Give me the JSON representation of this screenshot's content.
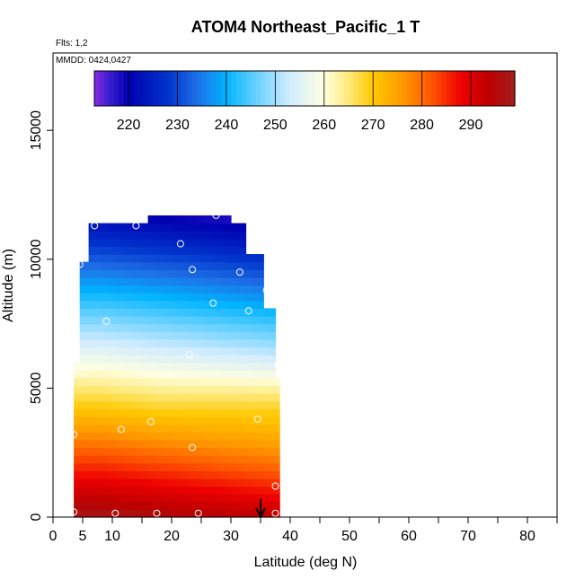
{
  "chart_data": {
    "type": "heatmap",
    "title": "ATOM4 Northeast_Pacific_1 T",
    "annotations": {
      "flights": "Flts: 1,2",
      "dates": "MMDD: 0424,0427"
    },
    "xlabel": "Latitude (deg N)",
    "ylabel": "Altitude (m)",
    "xlim": [
      0,
      85
    ],
    "ylim": [
      0,
      18000
    ],
    "x_ticks": [
      0,
      5,
      10,
      20,
      30,
      40,
      50,
      60,
      70,
      80
    ],
    "x_minor_ticks": [
      15,
      25,
      35,
      45,
      55,
      65,
      75,
      85
    ],
    "y_ticks": [
      0,
      5000,
      10000,
      15000
    ],
    "grid": false,
    "colorbar": {
      "placement": "top, inside plot",
      "range": [
        213,
        299
      ],
      "ticks": [
        220,
        230,
        240,
        250,
        260,
        270,
        280,
        290
      ],
      "color_stops": [
        {
          "v": 213,
          "c": "#8a2be2"
        },
        {
          "v": 216,
          "c": "#3a1fd0"
        },
        {
          "v": 220,
          "c": "#0000b0"
        },
        {
          "v": 228,
          "c": "#0033cc"
        },
        {
          "v": 234,
          "c": "#1f6fe5"
        },
        {
          "v": 240,
          "c": "#00b4ff"
        },
        {
          "v": 246,
          "c": "#66d0ff"
        },
        {
          "v": 253,
          "c": "#d2ecff"
        },
        {
          "v": 260,
          "c": "#ffffe0"
        },
        {
          "v": 265,
          "c": "#ffe97a"
        },
        {
          "v": 270,
          "c": "#ffc800"
        },
        {
          "v": 276,
          "c": "#ff9a00"
        },
        {
          "v": 282,
          "c": "#ff5500"
        },
        {
          "v": 288,
          "c": "#ee0000"
        },
        {
          "v": 294,
          "c": "#bb0000"
        },
        {
          "v": 299,
          "c": "#a02020"
        }
      ]
    },
    "profiles": [
      {
        "lat": 4,
        "alt_min": 0,
        "alt_max": 6000
      },
      {
        "lat": 5,
        "alt_min": 0,
        "alt_max": 9800
      },
      {
        "lat": 7,
        "alt_min": 0,
        "alt_max": 11300
      },
      {
        "lat": 14,
        "alt_min": 0,
        "alt_max": 11300
      },
      {
        "lat": 18,
        "alt_min": 0,
        "alt_max": 11800
      },
      {
        "lat": 21,
        "alt_min": 0,
        "alt_max": 11800
      },
      {
        "lat": 24,
        "alt_min": 0,
        "alt_max": 11800
      },
      {
        "lat": 29,
        "alt_min": 0,
        "alt_max": 11800
      },
      {
        "lat": 31,
        "alt_min": 0,
        "alt_max": 11300
      },
      {
        "lat": 34,
        "alt_min": 0,
        "alt_max": 10300
      },
      {
        "lat": 37,
        "alt_min": 0,
        "alt_max": 8000
      },
      {
        "lat": 38,
        "alt_min": 0,
        "alt_max": 5500
      }
    ],
    "points": [
      {
        "x": 3.5,
        "y": 200
      },
      {
        "x": 10.5,
        "y": 150
      },
      {
        "x": 17.5,
        "y": 150
      },
      {
        "x": 24.5,
        "y": 150
      },
      {
        "x": 37.5,
        "y": 150
      },
      {
        "x": 37.5,
        "y": 1200
      },
      {
        "x": 3.5,
        "y": 3200
      },
      {
        "x": 11.5,
        "y": 3400
      },
      {
        "x": 16.5,
        "y": 3700
      },
      {
        "x": 23.5,
        "y": 2700
      },
      {
        "x": 34.5,
        "y": 3800
      },
      {
        "x": 3.5,
        "y": 5700
      },
      {
        "x": 5.0,
        "y": 5600
      },
      {
        "x": 38.0,
        "y": 5900
      },
      {
        "x": 23.0,
        "y": 6300
      },
      {
        "x": 9.0,
        "y": 7600
      },
      {
        "x": 27.0,
        "y": 8300
      },
      {
        "x": 33.0,
        "y": 8000
      },
      {
        "x": 36.0,
        "y": 8800
      },
      {
        "x": 23.5,
        "y": 9600
      },
      {
        "x": 31.5,
        "y": 9500
      },
      {
        "x": 4.5,
        "y": 9800
      },
      {
        "x": 21.5,
        "y": 10600
      },
      {
        "x": 7.0,
        "y": 11300
      },
      {
        "x": 14.0,
        "y": 11300
      },
      {
        "x": 27.5,
        "y": 11700
      }
    ],
    "arrow": {
      "x": 35,
      "y_from": 700,
      "y_to": 0
    }
  }
}
